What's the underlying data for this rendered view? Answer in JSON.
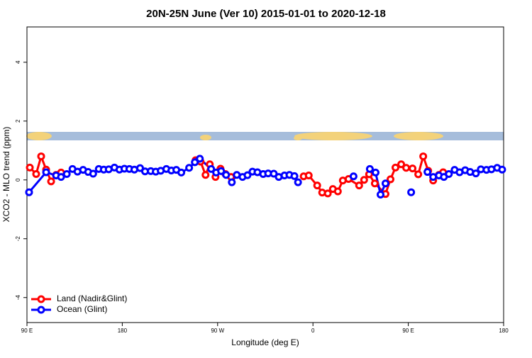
{
  "chart_data": {
    "type": "line",
    "title": "20N-25N June (Ver 10)   2015-01-01 to 2020-12-18",
    "x_label": "Longitude (deg E)",
    "y_label": "XCO2 - MLO trend (ppm)",
    "xlim": [
      90,
      540
    ],
    "xticks": [
      {
        "value": 90,
        "label": "90 E"
      },
      {
        "value": 180,
        "label": "180"
      },
      {
        "value": 270,
        "label": "90 W"
      },
      {
        "value": 360,
        "label": "0"
      },
      {
        "value": 450,
        "label": "90 E"
      },
      {
        "value": 540,
        "label": "180"
      }
    ],
    "ylim": [
      -4.85,
      5.2
    ],
    "yticks": [
      -4,
      -2,
      0,
      2,
      4
    ],
    "legend": "bottom-left",
    "series": [
      {
        "name": "Land (Nadir&Glint)",
        "color": "#ff0000",
        "x": [
          92.7,
          98.7,
          103.4,
          108.1,
          112.8,
          117.5,
          122.2,
          null,
          249.2,
          253.9,
          258.6,
          262.6,
          268,
          272.7,
          277.4,
          282.7,
          null,
          351.2,
          356,
          364,
          368.7,
          374,
          378.8,
          383.5,
          388.2,
          393.6,
          403.6,
          408.3,
          413,
          418.4,
          428.5,
          433.2,
          437.9,
          443.3,
          448,
          454,
          459.4,
          464.1,
          468.8,
          473.5,
          478.9,
          482.9
        ],
        "values": [
          0.42,
          0.2,
          0.8,
          0.35,
          -0.05,
          0.17,
          0.25,
          null,
          0.67,
          0.62,
          0.17,
          0.53,
          0.1,
          0.38,
          0.2,
          0.1,
          null,
          0.12,
          0.15,
          -0.19,
          -0.43,
          -0.46,
          -0.31,
          -0.39,
          -0.02,
          0.03,
          -0.19,
          0,
          0.19,
          -0.12,
          -0.48,
          0.02,
          0.42,
          0.53,
          0.41,
          0.39,
          0.19,
          0.8,
          0.31,
          -0.02,
          0.17,
          0.26
        ]
      },
      {
        "name": "Ocean (Glint)",
        "color": "#0000ff",
        "x": [
          92,
          108.1,
          117.5,
          122.2,
          127.6,
          133,
          137.7,
          143,
          147.8,
          152.5,
          157.8,
          162.5,
          167.2,
          172.6,
          177.3,
          182,
          186.7,
          191.4,
          196.8,
          201.5,
          206.9,
          211.6,
          216.3,
          221.6,
          226.3,
          231,
          235.7,
          243.1,
          248.5,
          253.2,
          263.9,
          268.6,
          273.3,
          278,
          283.4,
          288.1,
          293.5,
          298.2,
          302.9,
          307.6,
          313,
          317.7,
          323,
          327.7,
          333.1,
          337.8,
          342.5,
          345.9,
          null,
          398.3,
          null,
          413.7,
          419.1,
          423.8,
          428.5,
          null,
          452.7,
          null,
          468.1,
          473.5,
          478.9,
          483.6,
          488.3,
          493.7,
          498.4,
          503.7,
          508.4,
          513.8,
          518.5,
          523.8,
          528.5,
          533.9,
          538.6
        ],
        "values": [
          -0.42,
          0.26,
          0.15,
          0.1,
          0.2,
          0.37,
          0.28,
          0.34,
          0.27,
          0.21,
          0.37,
          0.35,
          0.36,
          0.42,
          0.35,
          0.38,
          0.37,
          0.35,
          0.4,
          0.29,
          0.3,
          0.28,
          0.31,
          0.37,
          0.32,
          0.34,
          0.25,
          0.41,
          0.6,
          0.72,
          0.37,
          0.25,
          0.3,
          0.17,
          -0.08,
          0.17,
          0.1,
          0.16,
          0.28,
          0.26,
          0.2,
          0.22,
          0.21,
          0.1,
          0.15,
          0.17,
          0.13,
          -0.08,
          null,
          0.12,
          null,
          0.37,
          0.25,
          -0.5,
          -0.12,
          null,
          -0.42,
          null,
          0.27,
          0.1,
          0.15,
          0.1,
          0.2,
          0.34,
          0.26,
          0.33,
          0.27,
          0.22,
          0.36,
          0.34,
          0.36,
          0.41,
          0.35
        ]
      }
    ]
  }
}
